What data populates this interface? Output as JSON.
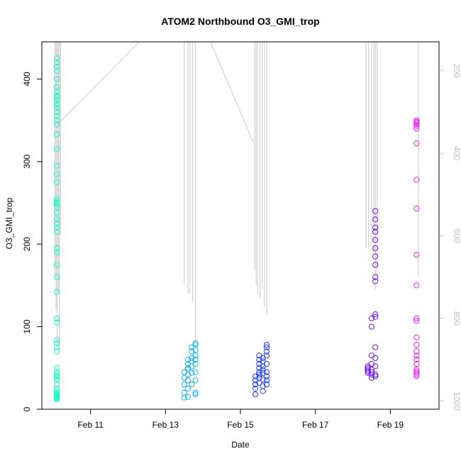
{
  "chart_data": {
    "type": "scatter",
    "title": "ATOM2 Northbound O3_GMI_trop",
    "xlabel": "Date",
    "ylabel": "O3_GMI_trop",
    "x_unit": "day of February 2017",
    "xlim": [
      9.7,
      20.3
    ],
    "ylim": [
      0,
      445
    ],
    "x_ticks": [
      {
        "value": 11,
        "label": "Feb 11"
      },
      {
        "value": 13,
        "label": "Feb 13"
      },
      {
        "value": 15,
        "label": "Feb 15"
      },
      {
        "value": 17,
        "label": "Feb 17"
      },
      {
        "value": 19,
        "label": "Feb 19"
      }
    ],
    "y_ticks": [
      {
        "value": 0,
        "label": "0"
      },
      {
        "value": 100,
        "label": "100"
      },
      {
        "value": 200,
        "label": "200"
      },
      {
        "value": 300,
        "label": "300"
      },
      {
        "value": 400,
        "label": "400"
      }
    ],
    "y2_ticks": [
      {
        "value": 200,
        "label": "200"
      },
      {
        "value": 400,
        "label": "400"
      },
      {
        "value": 600,
        "label": "600"
      },
      {
        "value": 800,
        "label": "800"
      },
      {
        "value": 1000,
        "label": "1000"
      }
    ],
    "y2lim": [
      1020,
      130
    ],
    "y2_color": "#bdbdbd",
    "grid": false,
    "legend": "none",
    "series": [
      {
        "color": "#19f7c4",
        "x": [
          10.1,
          10.1,
          10.1,
          10.1,
          10.1,
          10.1,
          10.1,
          10.1,
          10.1,
          10.1,
          10.1,
          10.1,
          10.1,
          10.1,
          10.1,
          10.1,
          10.1,
          10.1,
          10.1,
          10.1,
          10.1,
          10.1,
          10.1,
          10.1,
          10.1,
          10.1,
          10.1,
          10.1,
          10.1,
          10.1,
          10.1,
          10.1,
          10.1,
          10.1,
          10.1,
          10.1,
          10.1,
          10.1,
          10.1,
          10.1,
          10.1,
          10.1,
          10.1,
          10.1,
          10.1,
          10.1,
          10.1,
          10.1,
          10.1,
          10.1,
          10.1,
          10.1,
          10.1,
          10.1,
          10.1,
          10.1,
          10.1,
          10.1,
          10.1,
          10.1
        ],
        "y": [
          12,
          15,
          18,
          20,
          14,
          16,
          22,
          13,
          17,
          25,
          30,
          35,
          40,
          45,
          50,
          38,
          42,
          70,
          75,
          80,
          84,
          105,
          110,
          142,
          160,
          175,
          190,
          195,
          215,
          220,
          225,
          230,
          238,
          245,
          248,
          250,
          252,
          255,
          275,
          285,
          295,
          315,
          333,
          345,
          350,
          355,
          360,
          365,
          368,
          370,
          375,
          378,
          380,
          385,
          390,
          400,
          410,
          415,
          420,
          425
        ]
      },
      {
        "color": "#17b0f0",
        "x": [
          13.5,
          13.5,
          13.5,
          13.5,
          13.5,
          13.6,
          13.6,
          13.6,
          13.6,
          13.6,
          13.6,
          13.6,
          13.6,
          13.7,
          13.7,
          13.7,
          13.7,
          13.7,
          13.7,
          13.7,
          13.8,
          13.8,
          13.8,
          13.8,
          13.8,
          13.8,
          13.8,
          13.8,
          13.8,
          13.8
        ],
        "y": [
          14,
          20,
          30,
          38,
          45,
          50,
          55,
          35,
          42,
          60,
          25,
          15,
          48,
          52,
          58,
          62,
          70,
          75,
          44,
          30,
          78,
          80,
          72,
          65,
          60,
          55,
          45,
          35,
          20,
          18
        ]
      },
      {
        "color": "#1a3df5",
        "x": [
          15.4,
          15.4,
          15.4,
          15.4,
          15.4,
          15.5,
          15.5,
          15.5,
          15.5,
          15.5,
          15.5,
          15.5,
          15.5,
          15.6,
          15.6,
          15.6,
          15.6,
          15.6,
          15.6,
          15.6,
          15.6,
          15.7,
          15.7,
          15.7,
          15.7,
          15.7,
          15.7,
          15.7,
          15.7,
          15.7
        ],
        "y": [
          18,
          25,
          30,
          35,
          40,
          45,
          50,
          55,
          60,
          65,
          42,
          38,
          32,
          22,
          28,
          36,
          44,
          48,
          52,
          58,
          62,
          70,
          75,
          78,
          65,
          55,
          45,
          40,
          35,
          30
        ]
      },
      {
        "color": "#6b10f0",
        "x": [
          18.4,
          18.4,
          18.4,
          18.4,
          18.4,
          18.5,
          18.5,
          18.5,
          18.5,
          18.5,
          18.5,
          18.5,
          18.5,
          18.6,
          18.6,
          18.6,
          18.6,
          18.6,
          18.6,
          18.6,
          18.6,
          18.6,
          18.6,
          18.6,
          18.6,
          18.6,
          18.6,
          18.6,
          18.6,
          18.6
        ],
        "y": [
          44,
          48,
          50,
          52,
          46,
          38,
          42,
          45,
          55,
          65,
          100,
          110,
          48,
          52,
          42,
          40,
          62,
          75,
          112,
          115,
          155,
          160,
          175,
          185,
          195,
          205,
          215,
          220,
          230,
          240
        ]
      },
      {
        "color": "#f01ef0",
        "x": [
          19.7,
          19.7,
          19.7,
          19.7,
          19.7,
          19.7,
          19.7,
          19.7,
          19.7,
          19.7,
          19.7,
          19.7,
          19.7,
          19.7,
          19.7,
          19.7,
          19.7,
          19.7,
          19.7,
          19.7,
          19.7,
          19.7,
          19.7,
          19.7
        ],
        "y": [
          40,
          42,
          44,
          46,
          48,
          55,
          60,
          65,
          70,
          78,
          87,
          107,
          110,
          150,
          187,
          243,
          278,
          322,
          340,
          343,
          345,
          347,
          348,
          350
        ]
      }
    ],
    "profile_series": {
      "color": "#c8c8c8",
      "segments": [
        {
          "x": [
            10.05,
            10.05
          ],
          "y2": [
            130,
            700
          ]
        },
        {
          "x": [
            10.08,
            10.08
          ],
          "y2": [
            130,
            780
          ]
        },
        {
          "x": [
            10.11,
            10.11
          ],
          "y2": [
            130,
            860
          ]
        },
        {
          "x": [
            10.14,
            10.14
          ],
          "y2": [
            130,
            740
          ]
        },
        {
          "x": [
            10.17,
            10.17
          ],
          "y2": [
            130,
            880
          ]
        },
        {
          "x": [
            10.2,
            10.2
          ],
          "y2": [
            130,
            600
          ]
        },
        {
          "x": [
            10.12,
            12.3
          ],
          "y2": [
            330,
            130
          ]
        },
        {
          "x": [
            13.5,
            13.5
          ],
          "y2": [
            130,
            715
          ]
        },
        {
          "x": [
            13.6,
            13.6
          ],
          "y2": [
            130,
            740
          ]
        },
        {
          "x": [
            13.65,
            13.65
          ],
          "y2": [
            130,
            740
          ]
        },
        {
          "x": [
            13.72,
            13.72
          ],
          "y2": [
            130,
            760
          ]
        },
        {
          "x": [
            13.8,
            13.8
          ],
          "y2": [
            130,
            860
          ]
        },
        {
          "x": [
            14.2,
            15.35
          ],
          "y2": [
            130,
            375
          ]
        },
        {
          "x": [
            15.38,
            15.38
          ],
          "y2": [
            130,
            680
          ]
        },
        {
          "x": [
            15.42,
            15.42
          ],
          "y2": [
            130,
            720
          ]
        },
        {
          "x": [
            15.46,
            15.46
          ],
          "y2": [
            130,
            740
          ]
        },
        {
          "x": [
            15.52,
            15.52
          ],
          "y2": [
            130,
            750
          ]
        },
        {
          "x": [
            15.58,
            15.58
          ],
          "y2": [
            130,
            730
          ]
        },
        {
          "x": [
            15.64,
            15.64
          ],
          "y2": [
            130,
            770
          ]
        },
        {
          "x": [
            15.7,
            15.7
          ],
          "y2": [
            130,
            790
          ]
        },
        {
          "x": [
            18.35,
            18.35
          ],
          "y2": [
            130,
            630
          ]
        },
        {
          "x": [
            18.42,
            18.42
          ],
          "y2": [
            130,
            630
          ]
        },
        {
          "x": [
            18.5,
            18.5
          ],
          "y2": [
            130,
            620
          ]
        },
        {
          "x": [
            18.56,
            18.56
          ],
          "y2": [
            130,
            640
          ]
        },
        {
          "x": [
            18.6,
            18.6
          ],
          "y2": [
            130,
            730
          ]
        },
        {
          "x": [
            18.65,
            18.65
          ],
          "y2": [
            130,
            700
          ]
        },
        {
          "x": [
            19.75,
            19.75
          ],
          "y2": [
            130,
            700
          ]
        }
      ]
    }
  }
}
